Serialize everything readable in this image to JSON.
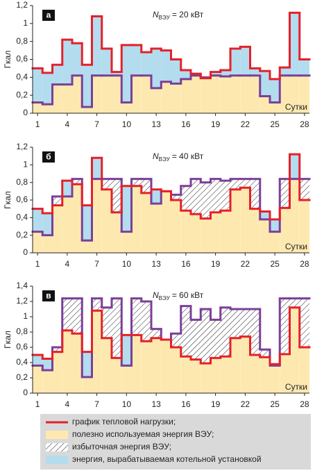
{
  "chart_data": [
    {
      "type": "step-area",
      "panel_label": "а",
      "ylabel": "Гкал",
      "xlabel": "Сутки",
      "annotation": {
        "symbol": "N",
        "subscript": "ВЭУ",
        "text": "= 20 кВт"
      },
      "xlim": [
        0.5,
        28.5
      ],
      "xticks": [
        1,
        4,
        7,
        10,
        13,
        16,
        19,
        22,
        25,
        28
      ],
      "ylim": [
        0,
        1.2
      ],
      "yticks": [
        0,
        {
          "value": 0.2,
          "label": "0,2"
        },
        {
          "value": 0.4,
          "label": "0,4"
        },
        {
          "value": 0.6,
          "label": "0,6"
        },
        {
          "value": 0.8,
          "label": "0,8"
        },
        1,
        {
          "value": 1.2,
          "label": "1,2"
        }
      ],
      "series": [
        {
          "color": "#e5202a",
          "values": [
            0.5,
            0.45,
            0.54,
            0.82,
            0.78,
            0.54,
            1.08,
            0.72,
            0.46,
            0.76,
            0.76,
            0.68,
            0.72,
            0.7,
            0.6,
            0.48,
            0.44,
            0.39,
            0.46,
            0.48,
            0.72,
            0.74,
            0.5,
            0.47,
            0.38,
            0.51,
            1.12,
            0.6
          ]
        },
        {
          "color": "#7b3f98",
          "values": [
            0.12,
            0.1,
            0.32,
            0.32,
            0.42,
            0.07,
            0.42,
            0.42,
            0.42,
            0.12,
            0.42,
            0.42,
            0.28,
            0.35,
            0.33,
            0.38,
            0.42,
            0.4,
            0.42,
            0.41,
            0.42,
            0.42,
            0.42,
            0.19,
            0.12,
            0.42,
            0.42,
            0.42
          ]
        }
      ]
    },
    {
      "type": "step-area",
      "panel_label": "б",
      "ylabel": "Гкал",
      "xlabel": "Сутки",
      "annotation": {
        "symbol": "N",
        "subscript": "ВЭУ",
        "text": "= 40 кВт"
      },
      "xlim": [
        0.5,
        28.5
      ],
      "xticks": [
        1,
        4,
        7,
        10,
        13,
        16,
        19,
        22,
        25,
        28
      ],
      "ylim": [
        0,
        1.2
      ],
      "yticks": [
        0,
        {
          "value": 0.2,
          "label": "0,2"
        },
        {
          "value": 0.4,
          "label": "0,4"
        },
        {
          "value": 0.6,
          "label": "0,6"
        },
        {
          "value": 0.8,
          "label": "0,8"
        },
        1,
        {
          "value": 1.2,
          "label": "1,2"
        }
      ],
      "series": [
        {
          "color": "#e5202a",
          "values": [
            0.5,
            0.45,
            0.54,
            0.82,
            0.78,
            0.54,
            1.08,
            0.72,
            0.46,
            0.76,
            0.76,
            0.68,
            0.72,
            0.7,
            0.6,
            0.48,
            0.44,
            0.39,
            0.46,
            0.48,
            0.72,
            0.74,
            0.5,
            0.47,
            0.38,
            0.51,
            1.12,
            0.6
          ]
        },
        {
          "color": "#7b3f98",
          "values": [
            0.24,
            0.2,
            0.64,
            0.64,
            0.84,
            0.14,
            0.84,
            0.84,
            0.84,
            0.24,
            0.84,
            0.84,
            0.56,
            0.7,
            0.66,
            0.76,
            0.84,
            0.8,
            0.84,
            0.82,
            0.84,
            0.84,
            0.84,
            0.38,
            0.24,
            0.84,
            0.84,
            0.84
          ]
        }
      ]
    },
    {
      "type": "step-area",
      "panel_label": "в",
      "ylabel": "Гкал",
      "xlabel": "Сутки",
      "annotation": {
        "symbol": "N",
        "subscript": "ВЭУ",
        "text": "= 60 кВт"
      },
      "xlim": [
        0.5,
        28.5
      ],
      "xticks": [
        1,
        4,
        7,
        10,
        13,
        16,
        19,
        22,
        25,
        28
      ],
      "ylim": [
        0,
        1.4
      ],
      "yticks": [
        0,
        {
          "value": 0.2,
          "label": "0,2"
        },
        {
          "value": 0.4,
          "label": "0,4"
        },
        {
          "value": 0.6,
          "label": "0,6"
        },
        {
          "value": 0.8,
          "label": "0,8"
        },
        1,
        {
          "value": 1.2,
          "label": "1,2"
        },
        {
          "value": 1.4,
          "label": "1,4"
        }
      ],
      "series": [
        {
          "color": "#e5202a",
          "values": [
            0.5,
            0.45,
            0.54,
            0.82,
            0.78,
            0.54,
            1.08,
            0.72,
            0.46,
            0.76,
            0.76,
            0.68,
            0.72,
            0.7,
            0.6,
            0.48,
            0.44,
            0.39,
            0.46,
            0.48,
            0.72,
            0.74,
            0.5,
            0.47,
            0.38,
            0.51,
            1.12,
            0.6
          ]
        },
        {
          "color": "#7b3f98",
          "values": [
            0.36,
            0.3,
            0.6,
            1.24,
            1.24,
            0.21,
            1.24,
            1.12,
            1.24,
            0.36,
            1.24,
            1.2,
            0.84,
            0.7,
            0.78,
            1.14,
            0.96,
            1.1,
            0.96,
            1.12,
            1.1,
            1.1,
            1.1,
            0.57,
            0.36,
            1.24,
            1.24,
            1.24
          ]
        }
      ]
    }
  ],
  "legend": [
    {
      "label": "график тепловой нагрузки;",
      "color": "#e5202a"
    },
    {
      "label": "полезно используемая энергия ВЭУ;",
      "color": "#fde9b0"
    },
    {
      "label": "избыточная энергия ВЭУ;",
      "color": "#ffffff"
    },
    {
      "label": "энергия, вырабатываемая котельной установкой",
      "color": "#b3dcef"
    }
  ]
}
